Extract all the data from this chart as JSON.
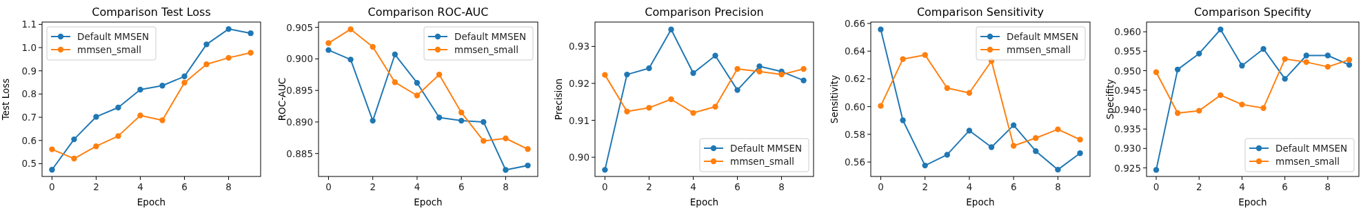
{
  "chart_data": [
    {
      "type": "line",
      "title": "Comparison Test Loss",
      "xlabel": "Epoch",
      "ylabel": "Test Loss",
      "x": [
        0,
        1,
        2,
        3,
        4,
        5,
        6,
        7,
        8,
        9
      ],
      "xlim": [
        -0.45,
        9.45
      ],
      "xticks": [
        0,
        2,
        4,
        6,
        8
      ],
      "ylim": [
        0.445,
        1.11
      ],
      "yticks": [
        {
          "value": 0.5,
          "label": "0.5"
        },
        {
          "value": 0.6,
          "label": "0.6"
        },
        {
          "value": 0.7,
          "label": "0.7"
        },
        {
          "value": 0.8,
          "label": "0.8"
        },
        {
          "value": 0.9,
          "label": "0.9"
        },
        {
          "value": 1.0,
          "label": "1.0"
        },
        {
          "value": 1.1,
          "label": "1.1"
        }
      ],
      "legend": "top left",
      "marker": "circle",
      "series": [
        {
          "name": "Default MMSEN",
          "color": "#1f77b4",
          "values": [
            0.474,
            0.605,
            0.702,
            0.742,
            0.819,
            0.836,
            0.876,
            1.014,
            1.08,
            1.062
          ]
        },
        {
          "name": "mmsen_small",
          "color": "#ff7f0e",
          "values": [
            0.562,
            0.522,
            0.575,
            0.619,
            0.708,
            0.687,
            0.849,
            0.928,
            0.956,
            0.978
          ]
        }
      ]
    },
    {
      "type": "line",
      "title": "Comparison ROC-AUC",
      "xlabel": "Epoch",
      "ylabel": "ROC-AUC",
      "x": [
        0,
        1,
        2,
        3,
        4,
        5,
        6,
        7,
        8,
        9
      ],
      "xlim": [
        -0.45,
        9.45
      ],
      "xticks": [
        0,
        2,
        4,
        6,
        8
      ],
      "ylim": [
        0.88136,
        0.90584
      ],
      "yticks": [
        0.885,
        {
          "value": 0.89,
          "label": "0.890"
        },
        0.895,
        {
          "value": 0.9,
          "label": "0.900"
        },
        0.905
      ],
      "legend": "top right",
      "marker": "circle",
      "series": [
        {
          "name": "Default MMSEN",
          "color": "#1f77b4",
          "values": [
            0.9014,
            0.8999,
            0.8902,
            0.9007,
            0.8962,
            0.8907,
            0.8902,
            0.89,
            0.8824,
            0.8831
          ]
        },
        {
          "name": "mmsen_small",
          "color": "#ff7f0e",
          "values": [
            0.9025,
            0.9047,
            0.9019,
            0.8963,
            0.8942,
            0.8975,
            0.8915,
            0.887,
            0.8874,
            0.8857
          ]
        }
      ]
    },
    {
      "type": "line",
      "title": "Comparison Precision",
      "xlabel": "Epoch",
      "ylabel": "Precision",
      "x": [
        0,
        1,
        2,
        3,
        4,
        5,
        6,
        7,
        8,
        9
      ],
      "xlim": [
        -0.45,
        9.45
      ],
      "xticks": [
        0,
        2,
        4,
        6,
        8
      ],
      "ylim": [
        0.8948,
        0.9366
      ],
      "yticks": [
        {
          "value": 0.9,
          "label": "0.90"
        },
        0.91,
        0.92,
        0.93
      ],
      "legend": "bottom right",
      "marker": "circle",
      "series": [
        {
          "name": "Default MMSEN",
          "color": "#1f77b4",
          "values": [
            0.8966,
            0.9224,
            0.9241,
            0.9346,
            0.9228,
            0.9275,
            0.9182,
            0.9246,
            0.9232,
            0.9208
          ]
        },
        {
          "name": "mmsen_small",
          "color": "#ff7f0e",
          "values": [
            0.9223,
            0.9124,
            0.9134,
            0.9157,
            0.912,
            0.9137,
            0.9239,
            0.9232,
            0.9224,
            0.9239
          ]
        }
      ]
    },
    {
      "type": "line",
      "title": "Comparison Sensitivity",
      "xlabel": "Epoch",
      "ylabel": "Sensitivity",
      "x": [
        0,
        1,
        2,
        3,
        4,
        5,
        6,
        7,
        8,
        9
      ],
      "xlim": [
        -0.45,
        9.45
      ],
      "xticks": [
        0,
        2,
        4,
        6,
        8
      ],
      "ylim": [
        0.5496,
        0.661
      ],
      "yticks": [
        0.56,
        0.58,
        {
          "value": 0.6,
          "label": "0.60"
        },
        0.62,
        0.64,
        0.66
      ],
      "legend": "top right",
      "marker": "circle",
      "series": [
        {
          "name": "Default MMSEN",
          "color": "#1f77b4",
          "values": [
            0.6557,
            0.5901,
            0.5575,
            0.5653,
            0.5827,
            0.5707,
            0.5866,
            0.5679,
            0.5545,
            0.5664
          ]
        },
        {
          "name": "mmsen_small",
          "color": "#ff7f0e",
          "values": [
            0.6005,
            0.6343,
            0.6373,
            0.6134,
            0.6099,
            0.6329,
            0.5717,
            0.5773,
            0.5836,
            0.5762
          ]
        }
      ]
    },
    {
      "type": "line",
      "title": "Comparison Specifity",
      "xlabel": "Epoch",
      "ylabel": "Specifity",
      "x": [
        0,
        1,
        2,
        3,
        4,
        5,
        6,
        7,
        8,
        9
      ],
      "xlim": [
        -0.45,
        9.45
      ],
      "xticks": [
        0,
        2,
        4,
        6,
        8
      ],
      "ylim": [
        0.9228,
        0.9625
      ],
      "yticks": [
        0.925,
        {
          "value": 0.93,
          "label": "0.930"
        },
        0.935,
        {
          "value": 0.94,
          "label": "0.940"
        },
        0.945,
        {
          "value": 0.95,
          "label": "0.950"
        },
        0.955,
        {
          "value": 0.96,
          "label": "0.960"
        }
      ],
      "legend": "bottom right",
      "marker": "circle",
      "series": [
        {
          "name": "Default MMSEN",
          "color": "#1f77b4",
          "values": [
            0.9245,
            0.9503,
            0.9544,
            0.9606,
            0.9513,
            0.9556,
            0.9479,
            0.9539,
            0.9539,
            0.9515
          ]
        },
        {
          "name": "mmsen_small",
          "color": "#ff7f0e",
          "values": [
            0.9496,
            0.9391,
            0.9397,
            0.9437,
            0.9413,
            0.9404,
            0.953,
            0.9522,
            0.951,
            0.9528
          ]
        }
      ]
    }
  ]
}
